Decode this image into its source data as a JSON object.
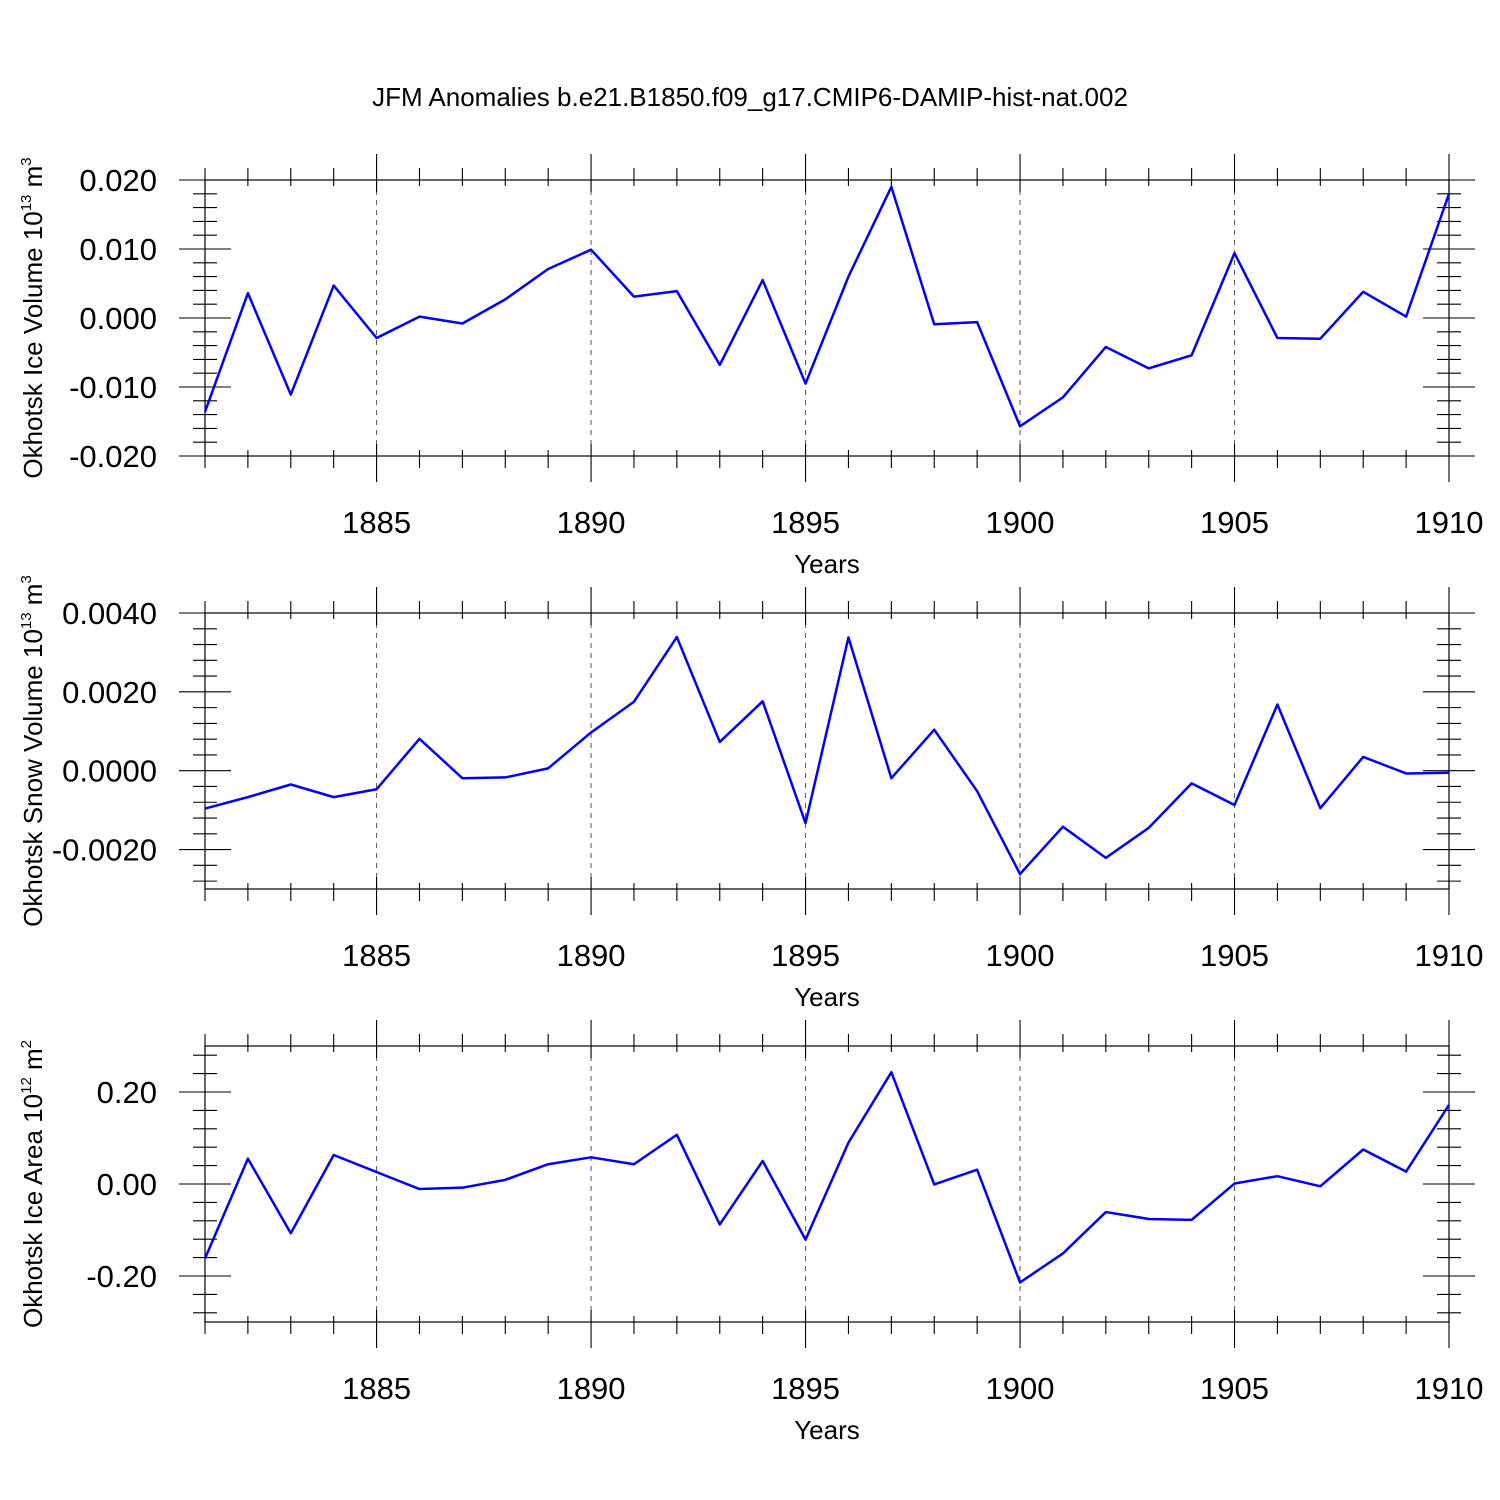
{
  "title": "JFM Anomalies b.e21.B1850.f09_g17.CMIP6-DAMIP-hist-nat.002",
  "line_color": "#0000ff",
  "chart_data": [
    {
      "type": "line",
      "name": "ice-volume",
      "ylabel": "Okhotsk Ice Volume 10",
      "ylabel_exp": "13",
      "ylabel_unit": " m",
      "ylabel_unit_exp": "3",
      "xlabel": "Years",
      "xlim": [
        1881,
        1910
      ],
      "ylim": [
        -0.02,
        0.02
      ],
      "major_yticks": [
        -0.02,
        -0.01,
        0.0,
        0.01,
        0.02
      ],
      "ytick_labels": [
        "-0.020",
        "-0.010",
        "0.000",
        "0.010",
        "0.020"
      ],
      "xticks": [
        1885,
        1890,
        1895,
        1900,
        1905,
        1910
      ],
      "xtick_labels": [
        "1885",
        "1890",
        "1895",
        "1900",
        "1905",
        "1910"
      ],
      "x": [
        1881,
        1882,
        1883,
        1884,
        1885,
        1886,
        1887,
        1888,
        1889,
        1890,
        1891,
        1892,
        1893,
        1894,
        1895,
        1896,
        1897,
        1898,
        1899,
        1900,
        1901,
        1902,
        1903,
        1904,
        1905,
        1906,
        1907,
        1908,
        1909,
        1910
      ],
      "values": [
        -0.0136,
        0.0036,
        -0.0111,
        0.0047,
        -0.0029,
        0.0002,
        -0.0008,
        0.0027,
        0.0071,
        0.0099,
        0.0031,
        0.0039,
        -0.0068,
        0.0055,
        -0.0095,
        0.006,
        0.019,
        -0.0009,
        -0.0006,
        -0.0157,
        -0.0115,
        -0.0042,
        -0.0073,
        -0.0054,
        0.0094,
        -0.0029,
        -0.003,
        0.0038,
        0.0002,
        0.018
      ]
    },
    {
      "type": "line",
      "name": "snow-volume",
      "ylabel": "Okhotsk Snow Volume 10",
      "ylabel_exp": "13",
      "ylabel_unit": " m",
      "ylabel_unit_exp": "3",
      "xlabel": "Years",
      "xlim": [
        1881,
        1910
      ],
      "ylim": [
        -0.003,
        0.004
      ],
      "major_yticks": [
        -0.002,
        0.0,
        0.002,
        0.004
      ],
      "ytick_labels": [
        "-0.0020",
        "0.0000",
        "0.0020",
        "0.0040"
      ],
      "xticks": [
        1885,
        1890,
        1895,
        1900,
        1905,
        1910
      ],
      "xtick_labels": [
        "1885",
        "1890",
        "1895",
        "1900",
        "1905",
        "1910"
      ],
      "x": [
        1881,
        1882,
        1883,
        1884,
        1885,
        1886,
        1887,
        1888,
        1889,
        1890,
        1891,
        1892,
        1893,
        1894,
        1895,
        1896,
        1897,
        1898,
        1899,
        1900,
        1901,
        1902,
        1903,
        1904,
        1905,
        1906,
        1907,
        1908,
        1909,
        1910
      ],
      "values": [
        -0.00096,
        -0.00067,
        -0.00035,
        -0.00067,
        -0.00047,
        0.00081,
        -0.00019,
        -0.00017,
        6e-05,
        0.00097,
        0.00175,
        0.00339,
        0.00073,
        0.00176,
        -0.00133,
        0.00338,
        -0.00019,
        0.00104,
        -0.00052,
        -0.00262,
        -0.00142,
        -0.00221,
        -0.00145,
        -0.00032,
        -0.00087,
        0.00168,
        -0.00095,
        0.00035,
        -7e-05,
        -5e-05
      ]
    },
    {
      "type": "line",
      "name": "ice-area",
      "ylabel": "Okhotsk Ice Area 10",
      "ylabel_exp": "12",
      "ylabel_unit": " m",
      "ylabel_unit_exp": "2",
      "xlabel": "Years",
      "xlim": [
        1881,
        1910
      ],
      "ylim": [
        -0.3,
        0.3
      ],
      "major_yticks": [
        -0.2,
        0.0,
        0.2
      ],
      "ytick_labels": [
        "-0.20",
        "0.00",
        "0.20"
      ],
      "xticks": [
        1885,
        1890,
        1895,
        1900,
        1905,
        1910
      ],
      "xtick_labels": [
        "1885",
        "1890",
        "1895",
        "1900",
        "1905",
        "1910"
      ],
      "x": [
        1881,
        1882,
        1883,
        1884,
        1885,
        1886,
        1887,
        1888,
        1889,
        1890,
        1891,
        1892,
        1893,
        1894,
        1895,
        1896,
        1897,
        1898,
        1899,
        1900,
        1901,
        1902,
        1903,
        1904,
        1905,
        1906,
        1907,
        1908,
        1909,
        1910
      ],
      "values": [
        -0.162,
        0.055,
        -0.107,
        0.063,
        0.026,
        -0.011,
        -0.008,
        0.009,
        0.043,
        0.058,
        0.043,
        0.107,
        -0.088,
        0.05,
        -0.121,
        0.09,
        0.243,
        -0.001,
        0.031,
        -0.214,
        -0.151,
        -0.061,
        -0.076,
        -0.078,
        0.001,
        0.017,
        -0.005,
        0.075,
        0.027,
        0.172
      ]
    }
  ]
}
